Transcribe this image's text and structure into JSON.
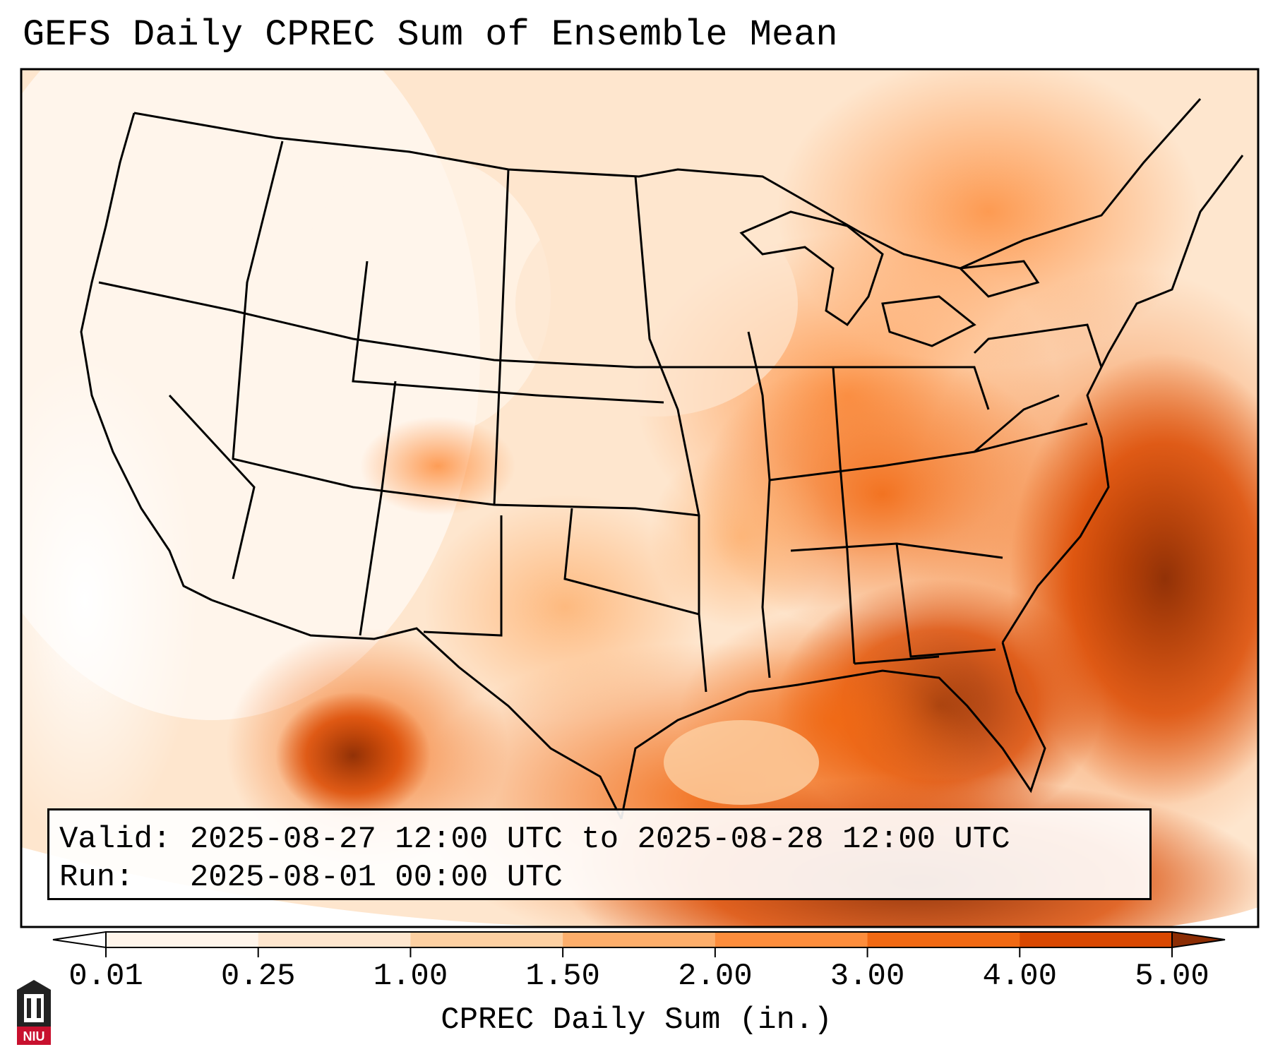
{
  "title": "GEFS Daily CPREC Sum of Ensemble Mean",
  "info": {
    "valid_label": "Valid:",
    "valid_value": "2025-08-27 12:00 UTC to 2025-08-28 12:00 UTC",
    "run_label": "Run:",
    "run_value": "2025-08-01 00:00 UTC"
  },
  "colorbar": {
    "label": "CPREC Daily Sum (in.)",
    "ticks": [
      "0.01",
      "0.25",
      "1.00",
      "1.50",
      "2.00",
      "3.00",
      "4.00",
      "5.00"
    ],
    "colors": [
      "#fff5eb",
      "#fee6ce",
      "#fdd0a2",
      "#fdae6b",
      "#fd8d3c",
      "#f16913",
      "#d94801",
      "#8c2d04"
    ]
  },
  "logo": {
    "text": "NIU",
    "name": "niu-logo-icon",
    "color": "#c8102e"
  }
}
